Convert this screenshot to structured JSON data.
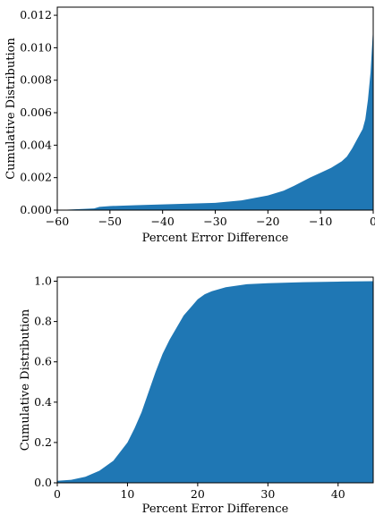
{
  "colors": {
    "fill": "#1f77b4",
    "axis": "#000000",
    "background": "#ffffff"
  },
  "chart_data": [
    {
      "type": "area",
      "title": "",
      "xlabel": "Percent Error Difference",
      "ylabel": "Cumulative Distribution",
      "xlim": [
        -60,
        0
      ],
      "ylim": [
        0,
        0.0125
      ],
      "xticks": [
        -60,
        -50,
        -40,
        -30,
        -20,
        -10,
        0
      ],
      "xtick_labels": [
        "−60",
        "−50",
        "−40",
        "−30",
        "−20",
        "−10",
        "0"
      ],
      "yticks": [
        0,
        0.002,
        0.004,
        0.006,
        0.008,
        0.01,
        0.012
      ],
      "ytick_labels": [
        "0.000",
        "0.002",
        "0.004",
        "0.006",
        "0.008",
        "0.010",
        "0.012"
      ],
      "grid": false,
      "legend": "none",
      "x": [
        -60,
        -53,
        -52,
        -50,
        -45,
        -40,
        -35,
        -30,
        -25,
        -20,
        -17,
        -15,
        -12,
        -10,
        -8,
        -7,
        -6,
        -5,
        -4,
        -3,
        -2,
        -1.5,
        -1,
        -0.5,
        0
      ],
      "y": [
        0,
        0.0001,
        0.0002,
        0.00025,
        0.0003,
        0.00035,
        0.0004,
        0.00045,
        0.0006,
        0.0009,
        0.0012,
        0.0015,
        0.002,
        0.0023,
        0.0026,
        0.0028,
        0.003,
        0.0033,
        0.0038,
        0.0044,
        0.005,
        0.0056,
        0.0068,
        0.0085,
        0.0113
      ]
    },
    {
      "type": "area",
      "title": "",
      "xlabel": "Percent Error Difference",
      "ylabel": "Cumulative Distribution",
      "xlim": [
        0,
        45
      ],
      "ylim": [
        0,
        1.02
      ],
      "xticks": [
        0,
        10,
        20,
        30,
        40
      ],
      "xtick_labels": [
        "0",
        "10",
        "20",
        "30",
        "40"
      ],
      "yticks": [
        0,
        0.2,
        0.4,
        0.6,
        0.8,
        1.0
      ],
      "ytick_labels": [
        "0.0",
        "0.2",
        "0.4",
        "0.6",
        "0.8",
        "1.0"
      ],
      "grid": false,
      "legend": "none",
      "x": [
        0,
        2,
        4,
        6,
        8,
        10,
        11,
        12,
        13,
        14,
        15,
        16,
        17,
        18,
        19,
        20,
        21,
        22,
        23,
        24,
        25,
        27,
        30,
        35,
        40,
        45
      ],
      "y": [
        0.01,
        0.015,
        0.03,
        0.06,
        0.11,
        0.2,
        0.27,
        0.35,
        0.45,
        0.55,
        0.64,
        0.71,
        0.77,
        0.83,
        0.87,
        0.91,
        0.935,
        0.95,
        0.96,
        0.97,
        0.975,
        0.985,
        0.99,
        0.995,
        0.998,
        1.0
      ]
    }
  ]
}
